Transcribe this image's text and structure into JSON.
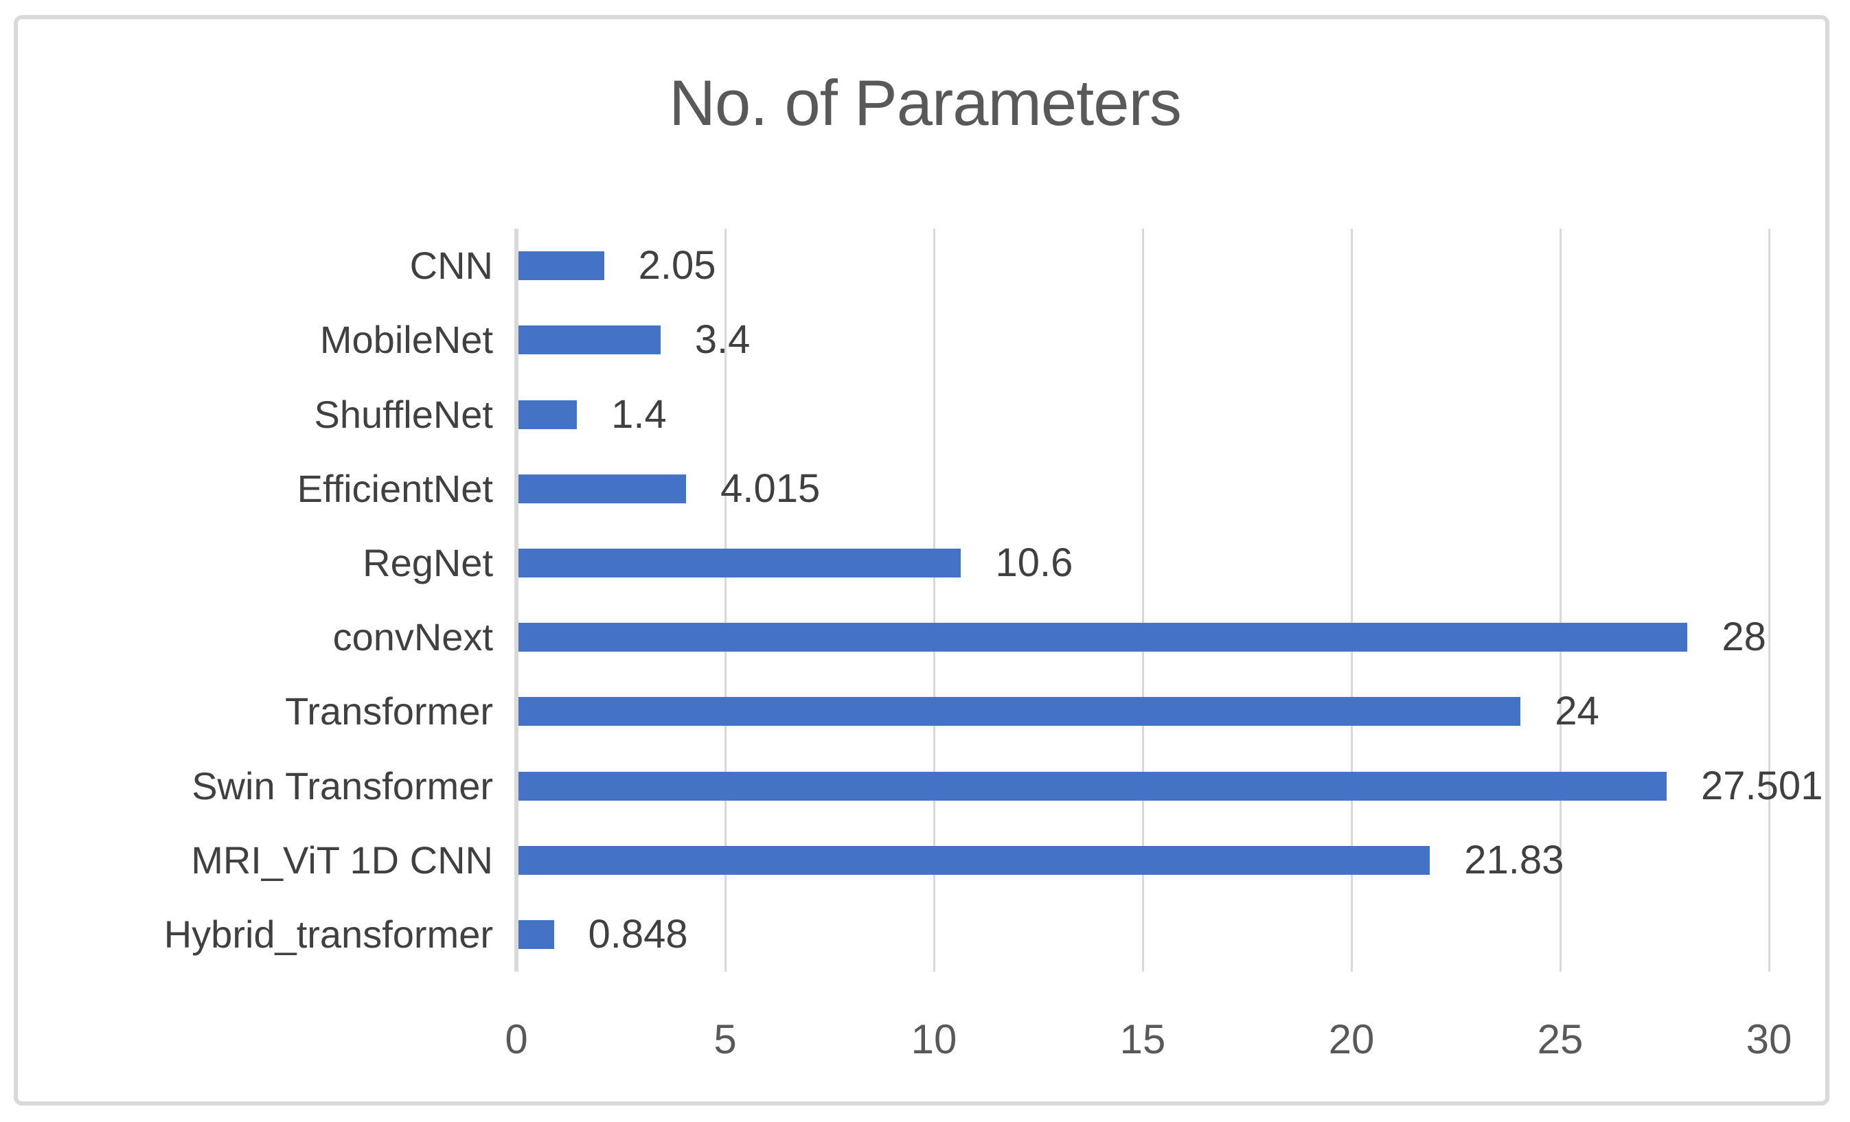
{
  "chart_data": {
    "type": "bar",
    "orientation": "horizontal",
    "title": "No. of Parameters",
    "categories": [
      "CNN",
      "MobileNet",
      "ShuffleNet",
      "EfficientNet",
      "RegNet",
      "convNext",
      "Transformer",
      "Swin Transformer",
      "MRI_ViT 1D CNN",
      "Hybrid_transformer"
    ],
    "values": [
      2.05,
      3.4,
      1.4,
      4.015,
      10.6,
      28,
      24,
      27.501,
      21.83,
      0.848
    ],
    "value_labels": [
      "2.05",
      "3.4",
      "1.4",
      "4.015",
      "10.6",
      "28",
      "24",
      "27.501",
      "21.83",
      "0.848"
    ],
    "xlabel": "",
    "ylabel": "",
    "xlim": [
      0,
      30
    ],
    "xticks": [
      0,
      5,
      10,
      15,
      20,
      25,
      30
    ],
    "xtick_labels": [
      "0",
      "5",
      "10",
      "15",
      "20",
      "25",
      "30"
    ],
    "grid": "vertical-gridlines-on",
    "legend": "none",
    "colors": {
      "bar": "#4472C4",
      "gridline": "#D9D9D9",
      "axis_line": "#D9D9D9",
      "title_text": "#595959",
      "label_text": "#404040",
      "tick_text": "#595959",
      "chart_border": "#D9D9D9",
      "background": "#FFFFFF"
    }
  }
}
